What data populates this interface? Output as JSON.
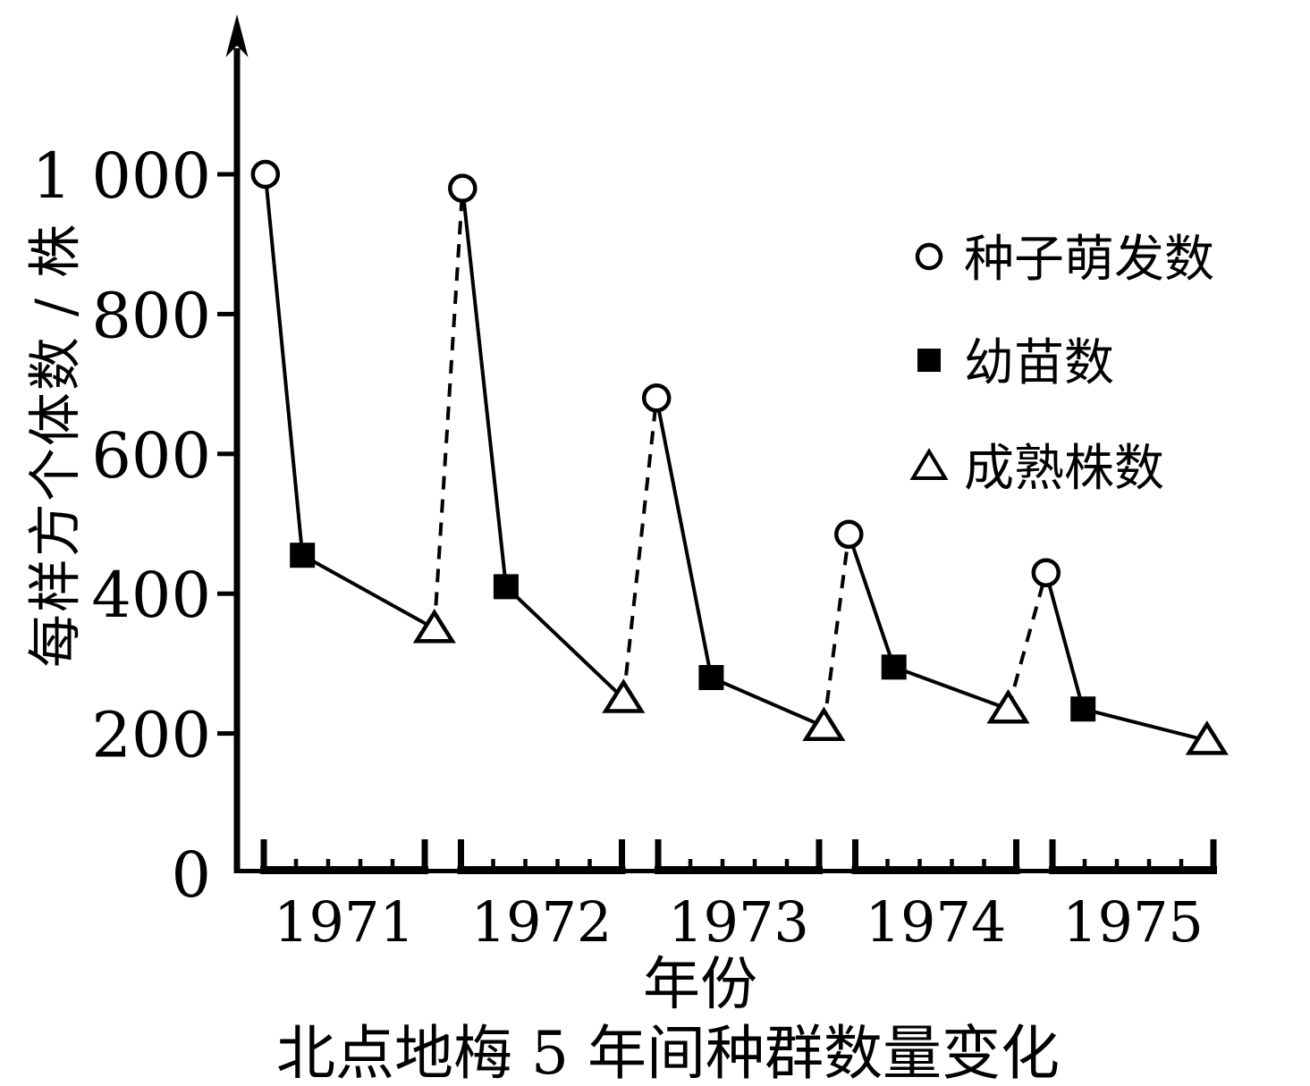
{
  "figure": {
    "title": "北点地梅 5 年间种群数量变化",
    "x_axis_label": "年份",
    "y_axis_label": "每样方个体数 / 株"
  },
  "legend": {
    "position": "upper-right",
    "items": [
      {
        "label": "种子萌发数",
        "marker": "circle-outline"
      },
      {
        "label": "幼苗数",
        "marker": "square-filled"
      },
      {
        "label": "成熟株数",
        "marker": "triangle-outline"
      }
    ]
  },
  "chart_data": {
    "type": "line",
    "title": "北点地梅5年间种群数量变化",
    "xlabel": "年份",
    "ylabel": "每样方个体数/株",
    "categories": [
      "1971",
      "1972",
      "1973",
      "1974",
      "1975"
    ],
    "y_axis": {
      "tick_values": [
        0,
        200,
        400,
        600,
        800,
        1000
      ],
      "tick_labels": [
        "0",
        "200",
        "400",
        "600",
        "800",
        "1 000"
      ],
      "range": [
        0,
        1150
      ]
    },
    "x_axis": {
      "ticks_per_year": 6,
      "tall_ticks": "at year-group boundaries",
      "note": "five separate year groups along the axis"
    },
    "series": [
      {
        "name": "种子萌发数",
        "marker": "circle",
        "values": [
          1000,
          980,
          680,
          485,
          430
        ],
        "x_frac": [
          0.01,
          0.01,
          -0.01,
          -0.04,
          -0.04
        ]
      },
      {
        "name": "幼苗数",
        "marker": "square",
        "values": [
          455,
          410,
          280,
          295,
          235
        ],
        "x_frac": [
          0.24,
          0.28,
          0.33,
          0.24,
          0.19
        ]
      },
      {
        "name": "成熟株数",
        "marker": "triangle",
        "values": [
          350,
          250,
          210,
          235,
          190
        ],
        "x_frac": [
          1.06,
          1.01,
          1.03,
          0.95,
          0.96
        ]
      }
    ],
    "line_style": {
      "within_year": "solid",
      "between_years": "dashed"
    },
    "grid": false,
    "colors": {
      "stroke": "#000000",
      "background": "#ffffff"
    }
  }
}
